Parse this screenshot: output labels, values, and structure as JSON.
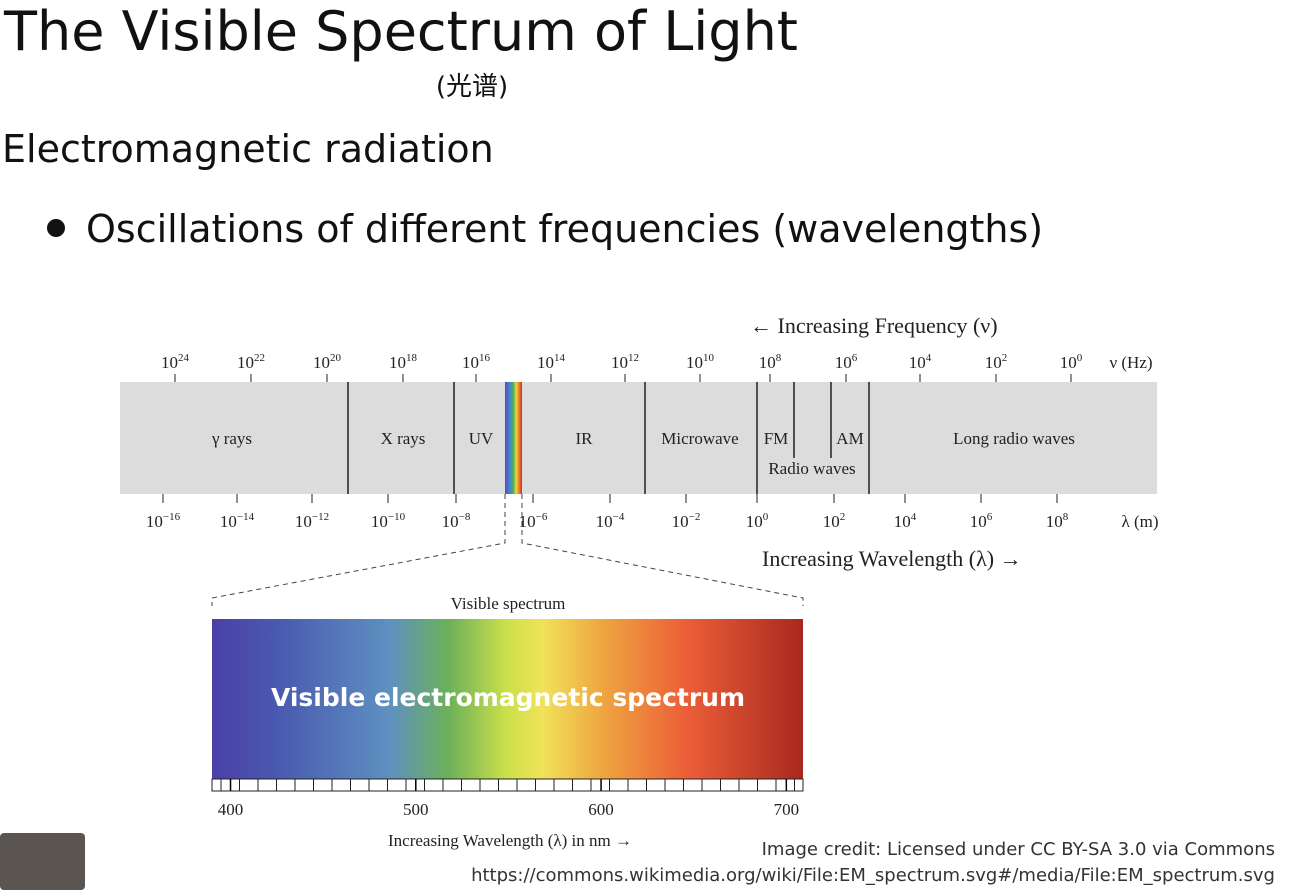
{
  "slide": {
    "title": "The Visible Spectrum of Light",
    "subtitle": "(光谱)",
    "heading": "Electromagnetic radiation",
    "bullet": "Oscillations of different frequencies (wavelengths)",
    "credit_line1": "Image credit: Licensed under CC BY-SA 3.0 via Commons",
    "credit_line2": "https://commons.wikimedia.org/wiki/File:EM_spectrum.svg#/media/File:EM_spectrum.svg"
  },
  "diagram": {
    "frequency_caption": "← Increasing Frequency (ν)",
    "wavelength_caption": "Increasing Wavelength (λ) →",
    "power_base": "10",
    "frequency_unit": "ν (Hz)",
    "frequency_exponents": [
      "24",
      "22",
      "20",
      "18",
      "16",
      "14",
      "12",
      "10",
      "8",
      "6",
      "4",
      "2",
      "0"
    ],
    "wavelength_unit": "λ (m)",
    "wavelength_exponents": [
      "−16",
      "−14",
      "−12",
      "−10",
      "−8",
      "−6",
      "−4",
      "−2",
      "0",
      "2",
      "4",
      "6",
      "8"
    ],
    "bands": [
      "γ rays",
      "X rays",
      "UV",
      "IR",
      "Microwave",
      "FM",
      "AM",
      "Long radio waves"
    ],
    "radio_label": "Radio waves",
    "visible_title": "Visible spectrum",
    "visible_banner": "Visible electromagnetic spectrum",
    "visible_axis": {
      "xlim": [
        390,
        709
      ],
      "xticks": [
        400,
        500,
        600,
        700
      ],
      "label": "Increasing Wavelength (λ) in nm →"
    }
  }
}
